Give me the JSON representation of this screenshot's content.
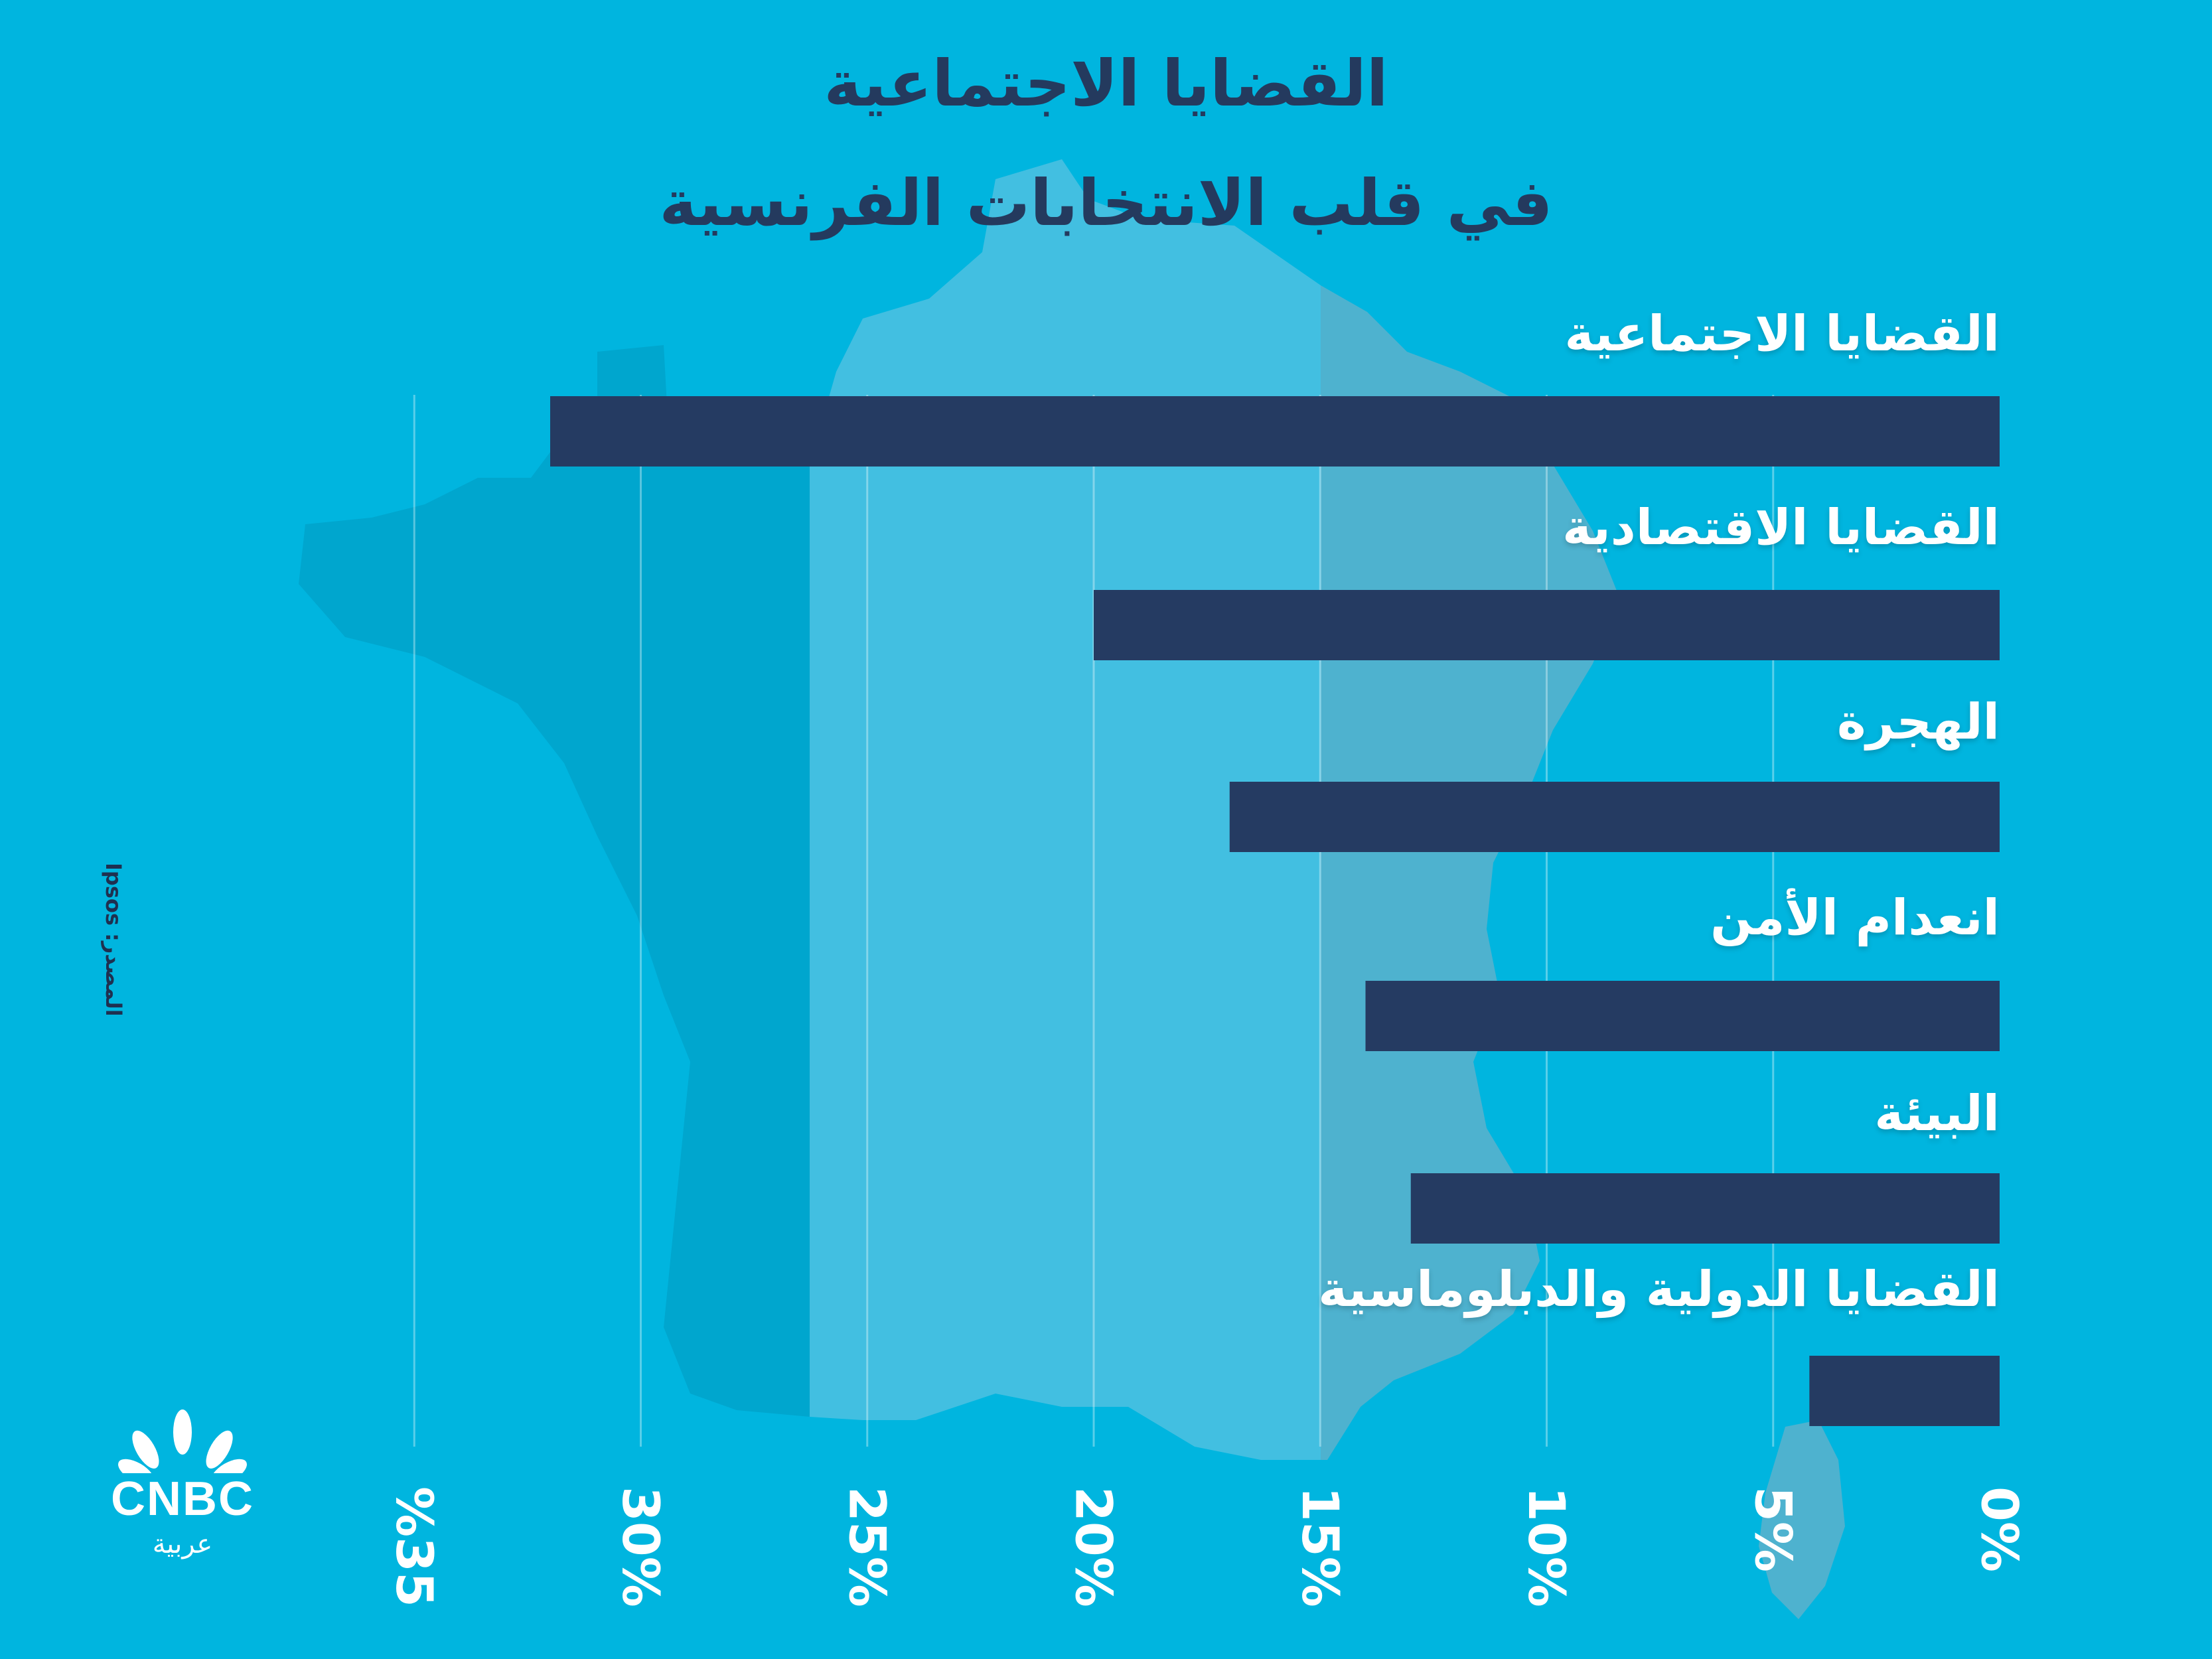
{
  "title": {
    "line1": "القضايا الاجتماعية",
    "line2": "في قلب الانتخابات الفرنسية"
  },
  "source": "المصدر: Ipsos",
  "logo": {
    "word": "CNBC",
    "sub": "عربية"
  },
  "colors": {
    "background": "#00b5df",
    "bar": "#253b62",
    "title": "#243a5e",
    "label": "#ffffff",
    "map_dark": "#00a6ce",
    "map_mid": "#42bfe1",
    "map_light": "#4eb2cf"
  },
  "chart_data": {
    "type": "bar",
    "orientation": "horizontal",
    "categories": [
      "القضايا الاجتماعية",
      "القضايا الاقتصادية",
      "الهجرة",
      "انعدام الأمن",
      "البيئة",
      "القضايا الدولية والدبلوماسية"
    ],
    "values": [
      32,
      20,
      17,
      14,
      13,
      4.2
    ],
    "unit": "%",
    "xlim": [
      0,
      35
    ],
    "xticks": [
      0,
      5,
      10,
      15,
      20,
      25,
      30,
      35
    ],
    "xtick_labels": [
      "0%",
      "5%",
      "10%",
      "15%",
      "20%",
      "25%",
      "30%",
      "%35"
    ],
    "grid": true,
    "axis_direction": "right-to-left"
  }
}
